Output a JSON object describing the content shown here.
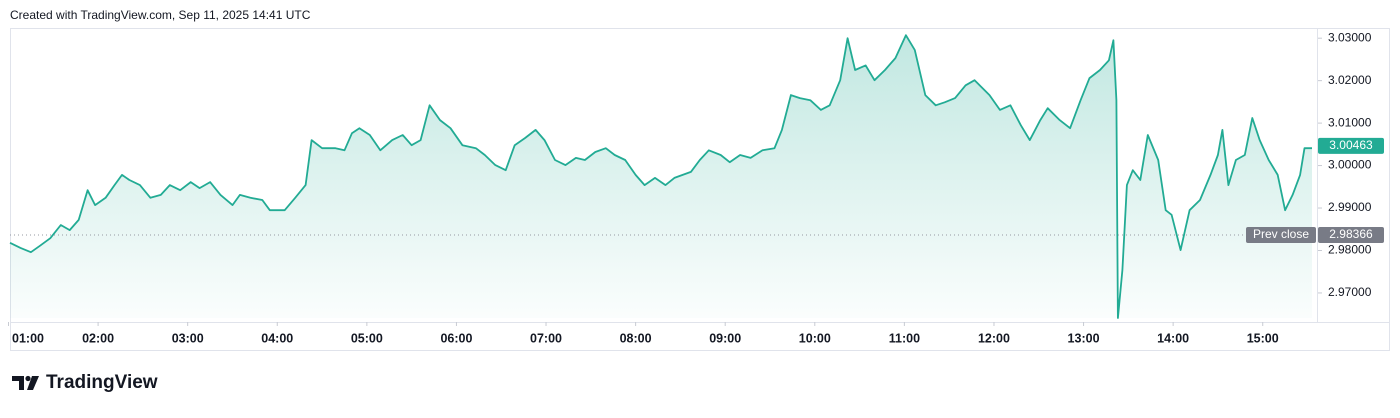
{
  "chart_data": {
    "type": "area",
    "header": "Created with TradingView.com, Sep 11, 2025 14:41 UTC",
    "brand": "TradingView",
    "color": "#22ab94",
    "x": [
      61,
      68,
      75,
      81,
      88,
      95,
      101,
      107,
      113,
      118,
      125,
      131,
      136,
      141,
      148,
      155,
      162,
      168,
      175,
      182,
      188,
      195,
      202,
      210,
      215,
      222,
      230,
      235,
      245,
      252,
      259,
      263,
      270,
      279,
      285,
      290,
      295,
      302,
      309,
      317,
      324,
      330,
      336,
      342,
      349,
      356,
      364,
      373,
      379,
      386,
      393,
      399,
      406,
      413,
      419,
      426,
      433,
      440,
      446,
      453,
      460,
      466,
      473,
      480,
      486,
      493,
      500,
      506,
      517,
      523,
      529,
      537,
      543,
      550,
      557,
      565,
      573,
      578,
      584,
      590,
      597,
      604,
      610,
      617,
      622,
      627,
      634,
      640,
      647,
      654,
      661,
      667,
      674,
      681,
      687,
      694,
      701,
      707,
      717,
      724,
      731,
      738,
      744,
      751,
      756,
      764,
      771,
      778,
      784,
      791,
      797,
      800,
      802,
      803,
      806,
      809,
      813,
      818,
      823,
      830,
      835,
      839,
      845,
      848,
      851,
      858,
      865,
      870,
      873,
      877,
      882,
      888,
      893,
      898,
      904,
      910,
      915,
      920,
      925,
      928,
      933
    ],
    "values": [
      2.9818,
      2.9806,
      2.9796,
      2.9811,
      2.9829,
      2.986,
      2.9848,
      2.9872,
      2.9942,
      2.9907,
      2.9924,
      2.9954,
      2.9978,
      2.9966,
      2.9954,
      2.9924,
      2.9931,
      2.9954,
      2.9942,
      2.9961,
      2.9947,
      2.9961,
      2.9931,
      2.9907,
      2.9931,
      2.9924,
      2.9919,
      2.9895,
      2.9895,
      2.9924,
      2.9954,
      3.006,
      3.0041,
      3.0041,
      3.0036,
      3.0076,
      3.0088,
      3.0072,
      3.0036,
      3.006,
      3.0072,
      3.0048,
      3.006,
      3.0142,
      3.0107,
      3.0088,
      3.0048,
      3.0041,
      3.0025,
      3.0001,
      2.9989,
      3.0048,
      3.0065,
      3.0084,
      3.006,
      3.0013,
      3.0001,
      3.0018,
      3.0013,
      3.0032,
      3.0041,
      3.0025,
      3.0013,
      2.9978,
      2.9954,
      2.9971,
      2.9954,
      2.9971,
      2.9985,
      3.0013,
      3.0036,
      3.0025,
      3.0008,
      3.0025,
      3.0018,
      3.0036,
      3.0041,
      3.0084,
      3.0166,
      3.0159,
      3.0154,
      3.0131,
      3.0142,
      3.0201,
      3.03,
      3.0225,
      3.0236,
      3.0201,
      3.0225,
      3.0253,
      3.0307,
      3.0272,
      3.0166,
      3.0142,
      3.0149,
      3.0159,
      3.0189,
      3.0201,
      3.0166,
      3.0131,
      3.0142,
      3.0095,
      3.006,
      3.0107,
      3.0135,
      3.0107,
      3.0088,
      3.0154,
      3.0206,
      3.0225,
      3.0248,
      3.0295,
      3.0154,
      2.9641,
      2.9754,
      2.9954,
      2.9989,
      2.9966,
      3.0072,
      3.0013,
      2.9895,
      2.9884,
      2.9801,
      2.9848,
      2.9895,
      2.9919,
      2.9978,
      3.0025,
      3.0084,
      2.9954,
      3.0013,
      3.0025,
      3.0112,
      3.006,
      3.0013,
      2.9978,
      2.9895,
      2.9931,
      2.9978,
      3.0041,
      3.0041
    ],
    "xlim": [
      61,
      933
    ],
    "ylim": [
      2.9641,
      3.0324
    ],
    "xticks": [
      {
        "value": 60,
        "label": "01:00"
      },
      {
        "value": 120,
        "label": "02:00"
      },
      {
        "value": 180,
        "label": "03:00"
      },
      {
        "value": 240,
        "label": "04:00"
      },
      {
        "value": 300,
        "label": "05:00"
      },
      {
        "value": 360,
        "label": "06:00"
      },
      {
        "value": 420,
        "label": "07:00"
      },
      {
        "value": 480,
        "label": "08:00"
      },
      {
        "value": 540,
        "label": "09:00"
      },
      {
        "value": 600,
        "label": "10:00"
      },
      {
        "value": 660,
        "label": "11:00"
      },
      {
        "value": 720,
        "label": "12:00"
      },
      {
        "value": 780,
        "label": "13:00"
      },
      {
        "value": 840,
        "label": "14:00"
      },
      {
        "value": 900,
        "label": "15:00"
      }
    ],
    "yticks": [
      {
        "value": 2.97,
        "label": "2.97000"
      },
      {
        "value": 2.98,
        "label": "2.98000"
      },
      {
        "value": 2.99,
        "label": "2.99000"
      },
      {
        "value": 3.0,
        "label": "3.00000"
      },
      {
        "value": 3.01,
        "label": "3.01000"
      },
      {
        "value": 3.02,
        "label": "3.02000"
      },
      {
        "value": 3.03,
        "label": "3.03000"
      }
    ],
    "last_value": {
      "value": 3.00463,
      "label": "3.00463"
    },
    "prev_close": {
      "name": "Prev close",
      "value": 2.98366,
      "label": "2.98366"
    }
  }
}
